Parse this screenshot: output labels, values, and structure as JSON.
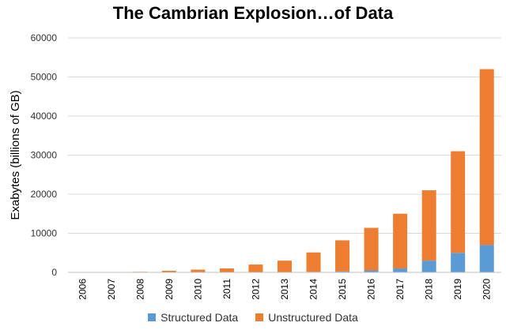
{
  "chart_data": {
    "type": "bar",
    "stacked": true,
    "title": "The Cambrian Explosion…of Data",
    "xlabel": "",
    "ylabel": "Exabytes (billions of GB)",
    "ylim": [
      0,
      60000
    ],
    "yticks": [
      0,
      10000,
      20000,
      30000,
      40000,
      50000,
      60000
    ],
    "grid": true,
    "legend_position": "bottom",
    "categories": [
      "2006",
      "2007",
      "2008",
      "2009",
      "2010",
      "2011",
      "2012",
      "2013",
      "2014",
      "2015",
      "2016",
      "2017",
      "2018",
      "2019",
      "2020"
    ],
    "series": [
      {
        "name": "Structured Data",
        "color": "#5B9BD5",
        "values": [
          0,
          0,
          10,
          20,
          40,
          60,
          80,
          100,
          150,
          250,
          500,
          1000,
          3000,
          5000,
          7000
        ]
      },
      {
        "name": "Unstructured Data",
        "color": "#ED7D31",
        "values": [
          40,
          60,
          140,
          380,
          660,
          940,
          1920,
          2900,
          4950,
          7950,
          10900,
          14000,
          18000,
          26000,
          45000
        ]
      }
    ]
  }
}
